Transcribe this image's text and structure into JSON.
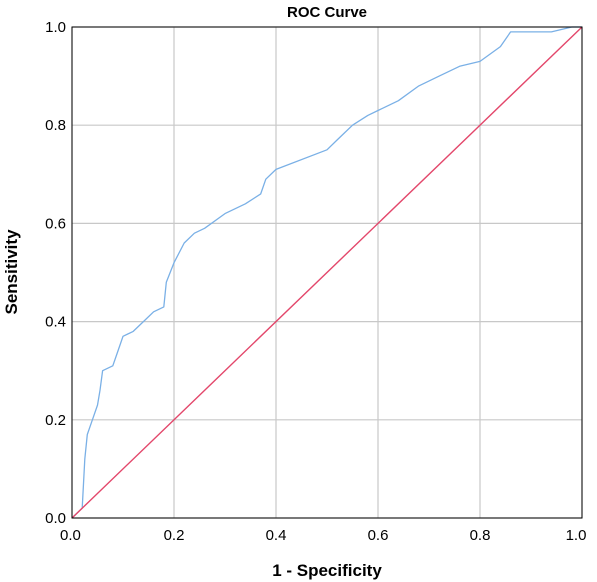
{
  "chart_data": {
    "type": "line",
    "title": "ROC Curve",
    "xlabel": "1 - Specificity",
    "ylabel": "Sensitivity",
    "xlim": [
      0,
      1
    ],
    "ylim": [
      0,
      1
    ],
    "x_ticks": [
      "0.0",
      "0.2",
      "0.4",
      "0.6",
      "0.8",
      "1.0"
    ],
    "y_ticks": [
      "0.0",
      "0.2",
      "0.4",
      "0.6",
      "0.8",
      "1.0"
    ],
    "grid": true,
    "series": [
      {
        "color": "#7ab0e6",
        "x": [
          0,
          0.02,
          0.025,
          0.03,
          0.04,
          0.05,
          0.055,
          0.06,
          0.08,
          0.09,
          0.1,
          0.12,
          0.14,
          0.16,
          0.18,
          0.185,
          0.2,
          0.22,
          0.24,
          0.26,
          0.3,
          0.34,
          0.37,
          0.38,
          0.4,
          0.5,
          0.52,
          0.55,
          0.58,
          0.6,
          0.64,
          0.68,
          0.72,
          0.76,
          0.8,
          0.84,
          0.86,
          0.9,
          0.94,
          0.98,
          1.0
        ],
        "y": [
          0,
          0.02,
          0.12,
          0.17,
          0.2,
          0.23,
          0.26,
          0.3,
          0.31,
          0.34,
          0.37,
          0.38,
          0.4,
          0.42,
          0.43,
          0.48,
          0.52,
          0.56,
          0.58,
          0.59,
          0.62,
          0.64,
          0.66,
          0.69,
          0.71,
          0.75,
          0.77,
          0.8,
          0.82,
          0.83,
          0.85,
          0.88,
          0.9,
          0.92,
          0.93,
          0.96,
          0.99,
          0.99,
          0.99,
          1.0,
          1.0
        ]
      },
      {
        "color": "#e3476b",
        "x": [
          0,
          1
        ],
        "y": [
          0,
          1
        ]
      }
    ]
  }
}
